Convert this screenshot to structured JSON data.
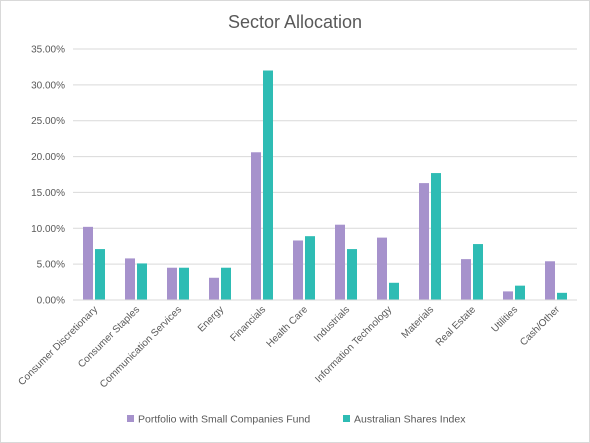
{
  "chart_data": {
    "type": "bar",
    "title": "Sector Allocation",
    "xlabel": "",
    "ylabel": "",
    "ylim": [
      0,
      35
    ],
    "y_ticks": [
      "0.00%",
      "5.00%",
      "10.00%",
      "15.00%",
      "20.00%",
      "25.00%",
      "30.00%",
      "35.00%"
    ],
    "y_tick_values": [
      0,
      5,
      10,
      15,
      20,
      25,
      30,
      35
    ],
    "grid": true,
    "legend_position": "bottom",
    "categories": [
      "Consumer Discretionary",
      "Consumer Staples",
      "Communication Services",
      "Energy",
      "Financials",
      "Health Care",
      "Industrials",
      "Information Technology",
      "Materials",
      "Real Estate",
      "Utilities",
      "Cash/Other"
    ],
    "series": [
      {
        "name": "Portfolio with Small Companies Fund",
        "color": "#a692cc",
        "values": [
          10.2,
          5.8,
          4.5,
          3.1,
          20.6,
          8.3,
          10.5,
          8.7,
          16.3,
          5.7,
          1.2,
          5.4
        ]
      },
      {
        "name": "Australian Shares Index",
        "color": "#2ebcb4",
        "values": [
          7.1,
          5.1,
          4.5,
          4.5,
          32.0,
          8.9,
          7.1,
          2.4,
          17.7,
          7.8,
          2.0,
          1.0
        ]
      }
    ]
  }
}
